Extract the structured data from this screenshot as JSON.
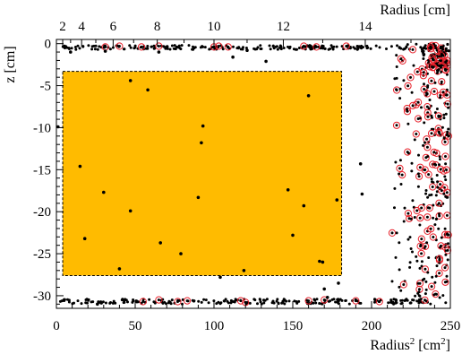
{
  "chart_data": {
    "type": "scatter",
    "xlabel_bottom": "Radius² [cm²]",
    "xlabel_bottom_main": "Radius",
    "xlabel_bottom_sup1": "2",
    "xlabel_bottom_unit": "[cm",
    "xlabel_bottom_sup2": "2",
    "xlabel_bottom_close": "]",
    "xlabel_top": "Radius [cm]",
    "ylabel": "z [cm]",
    "xlim": [
      0,
      250
    ],
    "ylim": [
      -31.5,
      0.5
    ],
    "x_ticks": [
      0,
      50,
      100,
      150,
      200,
      250
    ],
    "y_ticks": [
      0,
      -5,
      -10,
      -15,
      -20,
      -25,
      -30
    ],
    "top_ticks": [
      2,
      4,
      6,
      8,
      10,
      12,
      14
    ],
    "top_tick_labels": [
      "2",
      "4",
      "6",
      "8",
      "10",
      "12",
      "14"
    ],
    "grid": false,
    "region": {
      "x": [
        4,
        181
      ],
      "z": [
        -27.6,
        -3.3
      ],
      "fill": "#ffbb00",
      "border": "dashed"
    },
    "colors": {
      "point": "#000000",
      "highlight_ring": "#e8202a",
      "region": "#ffbb00"
    },
    "isolated_points": [
      [
        1,
        -9.9
      ],
      [
        15,
        -14.6
      ],
      [
        18,
        -23.2
      ],
      [
        30,
        -17.7
      ],
      [
        40,
        -26.8
      ],
      [
        47,
        -4.4
      ],
      [
        47,
        -19.9
      ],
      [
        58,
        -5.5
      ],
      [
        66,
        -23.7
      ],
      [
        79,
        -25.0
      ],
      [
        90,
        -18.3
      ],
      [
        92,
        -11.8
      ],
      [
        93,
        -9.8
      ],
      [
        104,
        -27.8
      ],
      [
        119,
        -27.0
      ],
      [
        133,
        -2.1
      ],
      [
        147,
        -17.4
      ],
      [
        150,
        -22.8
      ],
      [
        157,
        -19.3
      ],
      [
        160,
        -6.2
      ],
      [
        167,
        -25.9
      ],
      [
        169,
        -26.0
      ],
      [
        170,
        -29.2
      ],
      [
        178,
        -18.6
      ],
      [
        179,
        -28.5
      ],
      [
        193,
        -14.3
      ],
      [
        194,
        -17.9
      ],
      [
        5,
        -0.4
      ],
      [
        9,
        -1.0
      ],
      [
        31,
        -0.9
      ],
      [
        65,
        -1.0
      ],
      [
        112,
        -1.6
      ],
      [
        121,
        -0.8
      ],
      [
        26,
        -31.0
      ],
      [
        172,
        -30.2
      ],
      [
        179,
        -30.6
      ]
    ]
  }
}
